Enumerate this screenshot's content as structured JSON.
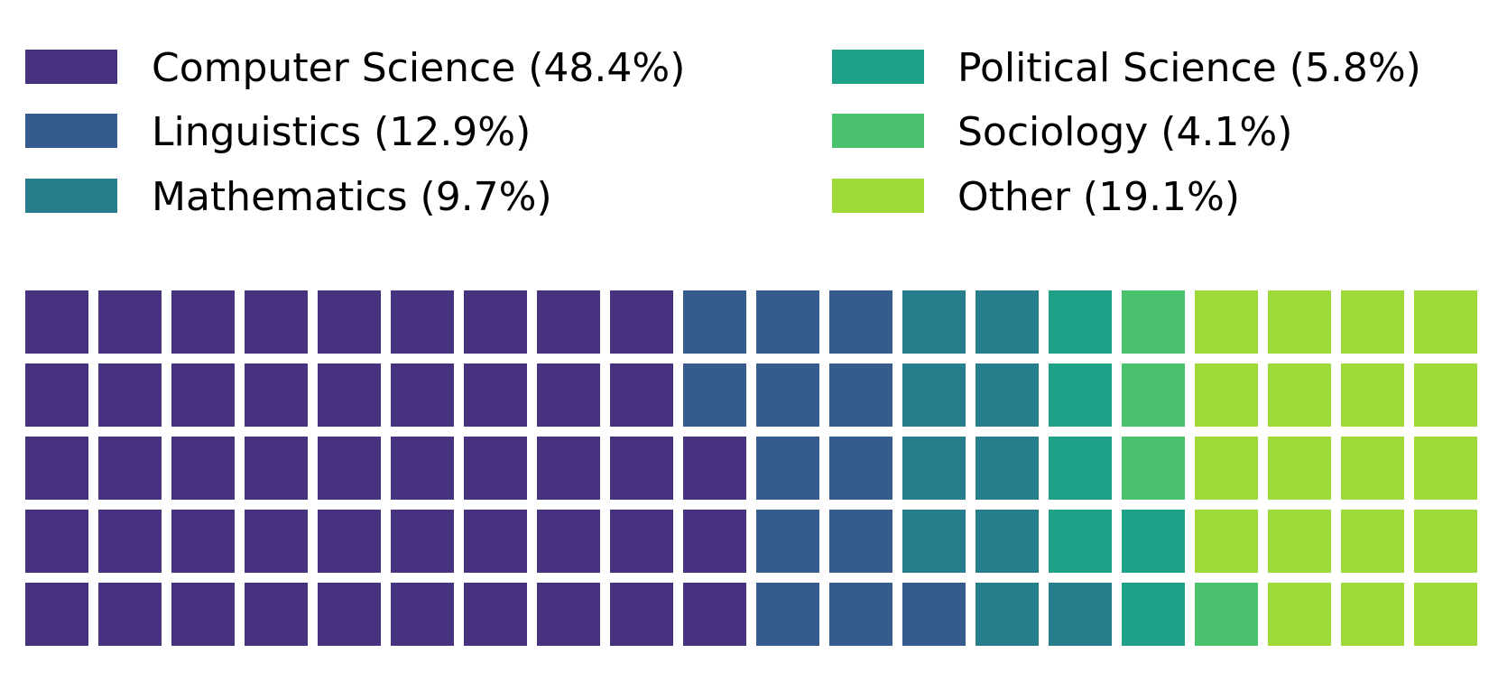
{
  "chart_data": {
    "type": "waffle",
    "grid": {
      "rows": 5,
      "columns": 20,
      "cell_count": 100
    },
    "fill_order": "column-major, bottom-to-top, left-to-right",
    "legend": {
      "placement": "top",
      "columns": 2,
      "entries": [
        {
          "label": "Computer Science (48.4%)",
          "category": "Computer Science",
          "percent": 48.4,
          "cells": 48,
          "color": "#46327e"
        },
        {
          "label": "Linguistics (12.9%)",
          "category": "Linguistics",
          "percent": 12.9,
          "cells": 13,
          "color": "#365c8d"
        },
        {
          "label": "Mathematics (9.7%)",
          "category": "Mathematics",
          "percent": 9.7,
          "cells": 10,
          "color": "#277f8e"
        },
        {
          "label": "Political Science (5.8%)",
          "category": "Political Science",
          "percent": 5.8,
          "cells": 6,
          "color": "#1fa187"
        },
        {
          "label": "Sociology (4.1%)",
          "category": "Sociology",
          "percent": 4.1,
          "cells": 4,
          "color": "#4ac16d"
        },
        {
          "label": "Other (19.1%)",
          "category": "Other",
          "percent": 19.1,
          "cells": 19,
          "color": "#a0da39"
        }
      ]
    },
    "background_color": "#ffffff"
  }
}
